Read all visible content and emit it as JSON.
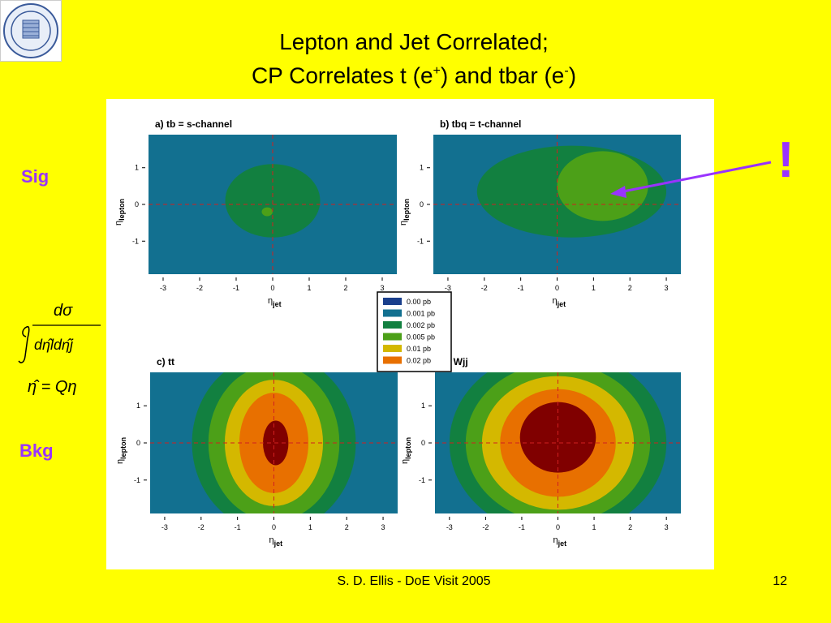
{
  "slide": {
    "title_line1": "Lepton and Jet Correlated;",
    "title_line2_a": "CP Correlates t (e",
    "title_line2_sup1": "+",
    "title_line2_b": ") and tbar (e",
    "title_line2_sup2": "-",
    "title_line2_c": ")",
    "sig_label": "Sig",
    "bkg_label": "Bkg",
    "exclamation": "!",
    "footer": "S. D. Ellis - DoE Visit 2005",
    "page_number": "12",
    "accent_color": "#9933FF",
    "background_color": "#FFFF00",
    "logo": "university-seal-icon",
    "formula": {
      "numerator": "dσ",
      "denominator": "dη̂ldη̂j",
      "relation": "η̂ = Qη"
    }
  },
  "chart_data": {
    "type": "heatmap",
    "x_range": [
      -3.4,
      3.4
    ],
    "y_range": [
      -1.9,
      1.9
    ],
    "x_ticks": [
      -3,
      -2,
      -1,
      0,
      1,
      2,
      3
    ],
    "y_ticks": [
      1,
      0,
      -1
    ],
    "xlabel_main": "η",
    "xlabel_sub": "jet",
    "ylabel_main": "η",
    "ylabel_sub": "lepton",
    "legend": [
      {
        "label": "0.00 pb",
        "color": "#1A3F8C"
      },
      {
        "label": "0.001 pb",
        "color": "#127090"
      },
      {
        "label": "0.002 pb",
        "color": "#128040"
      },
      {
        "label": "0.005 pb",
        "color": "#4CA018"
      },
      {
        "label": "0.01 pb",
        "color": "#D4B800"
      },
      {
        "label": "0.02 pb",
        "color": "#E87000"
      },
      {
        "label": "",
        "color": "#800000"
      }
    ],
    "panels": [
      {
        "title": "a) tb = s-channel",
        "row": "Sig",
        "regions": [
          {
            "level": 0.002,
            "center": [
              0,
              0.1
            ],
            "radius": [
              1.3,
              1.0
            ]
          },
          {
            "level": 0.005,
            "center": [
              -0.15,
              -0.2
            ],
            "radius": [
              0.15,
              0.12
            ]
          }
        ]
      },
      {
        "title": "b) tbq = t-channel",
        "row": "Sig",
        "regions": [
          {
            "level": 0.002,
            "center": [
              0.4,
              0.35
            ],
            "radius": [
              2.6,
              1.25
            ]
          },
          {
            "level": 0.005,
            "center": [
              1.25,
              0.5
            ],
            "radius": [
              1.25,
              0.95
            ]
          }
        ]
      },
      {
        "title": "c) tt",
        "row": "Bkg",
        "regions": [
          {
            "level": 0.002,
            "center": [
              0,
              0
            ],
            "radius": [
              2.25,
              2.4
            ]
          },
          {
            "level": 0.005,
            "center": [
              0,
              0
            ],
            "radius": [
              1.8,
              2.1
            ]
          },
          {
            "level": 0.01,
            "center": [
              0,
              0
            ],
            "radius": [
              1.35,
              1.7
            ]
          },
          {
            "level": 0.02,
            "center": [
              0,
              0
            ],
            "radius": [
              0.95,
              1.35
            ]
          },
          {
            "level": 0.04,
            "center": [
              0.05,
              0
            ],
            "radius": [
              0.35,
              0.6
            ]
          }
        ]
      },
      {
        "title": "d) Wjj",
        "row": "Bkg",
        "regions": [
          {
            "level": 0.002,
            "center": [
              0,
              0
            ],
            "radius": [
              3.0,
              2.5
            ]
          },
          {
            "level": 0.005,
            "center": [
              0,
              0
            ],
            "radius": [
              2.55,
              2.15
            ]
          },
          {
            "level": 0.01,
            "center": [
              0,
              0
            ],
            "radius": [
              2.1,
              1.8
            ]
          },
          {
            "level": 0.02,
            "center": [
              0,
              0
            ],
            "radius": [
              1.6,
              1.45
            ]
          },
          {
            "level": 0.04,
            "center": [
              0,
              0.15
            ],
            "radius": [
              1.05,
              0.95
            ]
          }
        ]
      }
    ]
  }
}
